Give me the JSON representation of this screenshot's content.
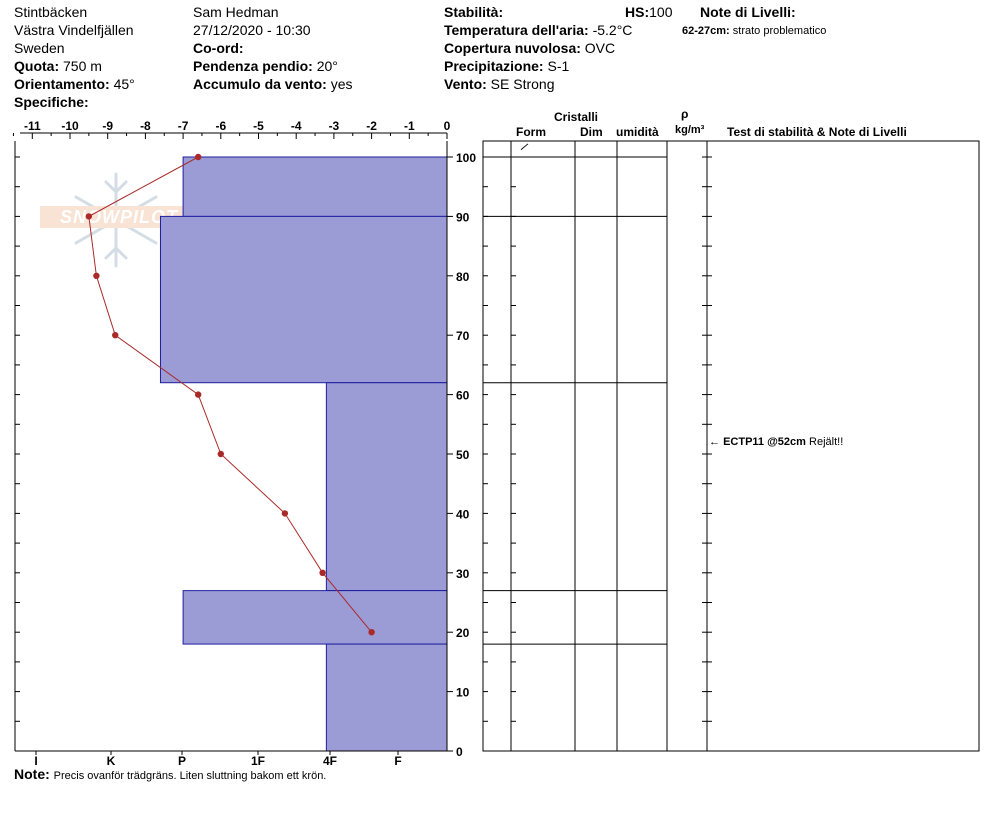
{
  "header": {
    "site": "Stintbäcken",
    "region": "Västra Vindelfjällen",
    "country": "Sweden",
    "observer": "Sam Hedman",
    "datetime": "27/12/2020 - 10:30",
    "quota_label": "Quota:",
    "quota_value": "750 m",
    "orient_label": "Orientamento:",
    "orient_value": "45°",
    "specifiche_label": "Specifiche:",
    "coord_label": "Co-ord:",
    "pendenza_label": "Pendenza pendio:",
    "pendenza_value": "20°",
    "accumulo_label": "Accumulo da vento:",
    "accumulo_value": "yes",
    "stabilita_label": "Stabilità:",
    "hs_label": "HS:",
    "hs_value": "100",
    "temp_label": "Temperatura dell'aria:",
    "temp_value": "-5.2°C",
    "copertura_label": "Copertura nuvolosa:",
    "copertura_value": "OVC",
    "precip_label": "Precipitazione:",
    "precip_value": "S-1",
    "vento_label": "Vento:",
    "vento_value": "SE Strong",
    "note_livelli_label": "Note di Livelli:",
    "note_livelli_range": "62-27cm:",
    "note_livelli_text": "strato problematico"
  },
  "table": {
    "cristalli": "Cristalli",
    "form": "Form",
    "dim": "Dim",
    "umidita": "umidità",
    "rho": "ρ",
    "density_unit": "kg/m³",
    "tests_header": "Test di stabilità & Note di Livelli",
    "form_symbol": "/",
    "test_code": "ECTP11 @52cm",
    "test_note": "Rejält!!"
  },
  "watermark": "SNOWPILOT",
  "note_label": "Note:",
  "note_text": "Precis ovanför trädgräns. Liten sluttning bakom ett krön.",
  "chart_data": {
    "type": "line",
    "temperature_axis": {
      "ticks": [
        "-11",
        "-10",
        "-9",
        "-8",
        "-7",
        "-6",
        "-5",
        "-4",
        "-3",
        "-2",
        "-1",
        "0"
      ],
      "range": [
        -11.5,
        0
      ]
    },
    "depth_axis": {
      "ticks": [
        "0",
        "10",
        "20",
        "30",
        "40",
        "50",
        "60",
        "70",
        "80",
        "90",
        "100"
      ],
      "range": [
        0,
        100
      ],
      "unit": "cm"
    },
    "hardness_axis": {
      "labels": [
        "I",
        "K",
        "P",
        "1F",
        "4F",
        "F"
      ]
    },
    "temperature_profile": {
      "depth": [
        100,
        90,
        80,
        70,
        60,
        50,
        40,
        30,
        20
      ],
      "temp": [
        -6.6,
        -9.5,
        -9.3,
        -8.8,
        -6.6,
        -6.0,
        -4.3,
        -3.3,
        -2.0
      ]
    },
    "hardness_layers": [
      {
        "top": 100,
        "bottom": 90,
        "hardness_temp": -7.0
      },
      {
        "top": 90,
        "bottom": 62,
        "hardness_temp": -7.6
      },
      {
        "top": 62,
        "bottom": 27,
        "hardness_temp": -3.2
      },
      {
        "top": 27,
        "bottom": 18,
        "hardness_temp": -7.0
      },
      {
        "top": 18,
        "bottom": 0,
        "hardness_temp": -3.2
      }
    ],
    "layer_boundaries": [
      90,
      62,
      27,
      18
    ],
    "test_depth": 52,
    "colors": {
      "layer_fill": "#9b9bd6",
      "layer_edge": "#1f1fa0",
      "temp_line": "#aa2a2a"
    }
  }
}
